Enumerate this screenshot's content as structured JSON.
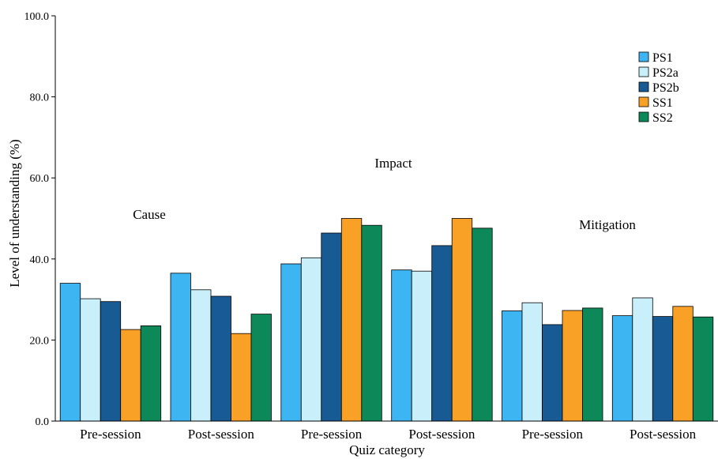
{
  "chart_data": {
    "type": "bar",
    "xlabel": "Quiz category",
    "ylabel": "Level of understanding (%)",
    "ylim": [
      0,
      100
    ],
    "yticks": [
      "0.0",
      "20.0",
      "40.0",
      "60.0",
      "80.0",
      "100.0"
    ],
    "grid": false,
    "legend_position": "top-right",
    "groups": [
      {
        "label": "Cause",
        "categories": [
          0,
          1
        ]
      },
      {
        "label": "Impact",
        "categories": [
          2,
          3
        ]
      },
      {
        "label": "Mitigation",
        "categories": [
          4,
          5
        ]
      }
    ],
    "categories": [
      "Pre-session",
      "Post-session",
      "Pre-session",
      "Post-session",
      "Pre-session",
      "Post-session"
    ],
    "series": [
      {
        "name": "PS1",
        "color": "#3DB5F2",
        "values": [
          34.0,
          36.5,
          38.8,
          37.3,
          27.2,
          26.0
        ]
      },
      {
        "name": "PS2a",
        "color": "#C9F0FA",
        "values": [
          30.2,
          32.4,
          40.3,
          37.0,
          29.2,
          30.4
        ]
      },
      {
        "name": "PS2b",
        "color": "#185A93",
        "values": [
          29.5,
          30.8,
          46.4,
          43.3,
          23.8,
          25.8
        ]
      },
      {
        "name": "SS1",
        "color": "#F9A127",
        "values": [
          22.6,
          21.6,
          50.0,
          50.0,
          27.3,
          28.3
        ]
      },
      {
        "name": "SS2",
        "color": "#0D8859",
        "values": [
          23.5,
          26.4,
          48.3,
          47.6,
          27.9,
          25.7
        ]
      }
    ]
  }
}
